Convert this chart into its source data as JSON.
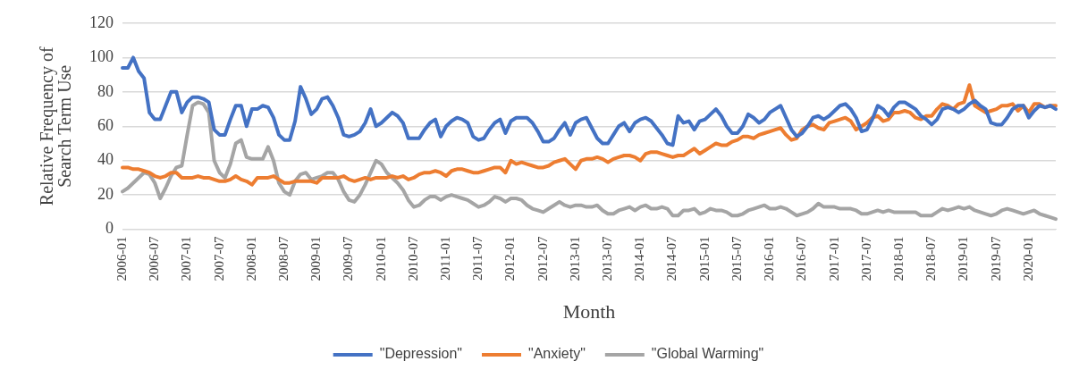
{
  "chart_data": {
    "type": "line",
    "xlabel": "Month",
    "ylabel": "Relative Frequency of Search Term Use",
    "ylim": [
      0,
      120
    ],
    "yticks": [
      0,
      20,
      40,
      60,
      80,
      100,
      120
    ],
    "grid": "y",
    "legend": "bottom",
    "marker": "none",
    "line_style": "solid",
    "categories": [
      "2006-01",
      null,
      null,
      null,
      null,
      null,
      "2006-07",
      null,
      null,
      null,
      null,
      null,
      "2007-01",
      null,
      null,
      null,
      null,
      null,
      "2007-07",
      null,
      null,
      null,
      null,
      null,
      "2008-01",
      null,
      null,
      null,
      null,
      null,
      "2008-07",
      null,
      null,
      null,
      null,
      null,
      "2009-01",
      null,
      null,
      null,
      null,
      null,
      "2009-07",
      null,
      null,
      null,
      null,
      null,
      "2010-01",
      null,
      null,
      null,
      null,
      null,
      "2010-07",
      null,
      null,
      null,
      null,
      null,
      "2011-01",
      null,
      null,
      null,
      null,
      null,
      "2011-07",
      null,
      null,
      null,
      null,
      null,
      "2012-01",
      null,
      null,
      null,
      null,
      null,
      "2012-07",
      null,
      null,
      null,
      null,
      null,
      "2013-01",
      null,
      null,
      null,
      null,
      null,
      "2013-07",
      null,
      null,
      null,
      null,
      null,
      "2014-01",
      null,
      null,
      null,
      null,
      null,
      "2014-07",
      null,
      null,
      null,
      null,
      null,
      "2015-01",
      null,
      null,
      null,
      null,
      null,
      "2015-07",
      null,
      null,
      null,
      null,
      null,
      "2016-01",
      null,
      null,
      null,
      null,
      null,
      "2016-07",
      null,
      null,
      null,
      null,
      null,
      "2017-01",
      null,
      null,
      null,
      null,
      null,
      "2017-07",
      null,
      null,
      null,
      null,
      null,
      "2018-01",
      null,
      null,
      null,
      null,
      null,
      "2018-07",
      null,
      null,
      null,
      null,
      null,
      "2019-01",
      null,
      null,
      null,
      null,
      null,
      "2019-07",
      null,
      null,
      null,
      null,
      null,
      "2020-01",
      null,
      null,
      null,
      null,
      null
    ],
    "series": [
      {
        "name": "\"Depression\"",
        "color": "#4472c4",
        "values": [
          94,
          94,
          100,
          92,
          88,
          68,
          64,
          64,
          72,
          80,
          80,
          68,
          74,
          77,
          77,
          76,
          74,
          58,
          55,
          55,
          64,
          72,
          72,
          60,
          70,
          70,
          72,
          71,
          65,
          55,
          52,
          52,
          63,
          83,
          76,
          67,
          70,
          76,
          77,
          72,
          65,
          55,
          54,
          55,
          57,
          62,
          70,
          60,
          62,
          65,
          68,
          66,
          62,
          53,
          53,
          53,
          58,
          62,
          64,
          54,
          60,
          63,
          65,
          64,
          62,
          54,
          52,
          53,
          58,
          62,
          64,
          56,
          63,
          65,
          65,
          65,
          62,
          57,
          51,
          51,
          53,
          58,
          62,
          55,
          62,
          64,
          65,
          59,
          53,
          50,
          50,
          55,
          60,
          62,
          57,
          62,
          64,
          65,
          63,
          59,
          55,
          50,
          49,
          66,
          62,
          63,
          58,
          63,
          64,
          67,
          70,
          66,
          60,
          56,
          56,
          60,
          67,
          65,
          62,
          64,
          68,
          70,
          72,
          65,
          58,
          54,
          56,
          60,
          65,
          66,
          64,
          66,
          69,
          72,
          73,
          70,
          65,
          57,
          58,
          64,
          72,
          70,
          66,
          71,
          74,
          74,
          72,
          70,
          66,
          64,
          61,
          64,
          70,
          71,
          70,
          68,
          70,
          73,
          75,
          72,
          70,
          62,
          61,
          61,
          65,
          70,
          72,
          72,
          65,
          69,
          72,
          71,
          72,
          70
        ]
      },
      {
        "name": "\"Anxiety\"",
        "color": "#ed7d31",
        "values": [
          36,
          36,
          35,
          35,
          34,
          33,
          31,
          30,
          31,
          33,
          33,
          30,
          30,
          30,
          31,
          30,
          30,
          29,
          28,
          28,
          29,
          31,
          29,
          28,
          26,
          30,
          30,
          30,
          31,
          29,
          27,
          27,
          28,
          28,
          28,
          28,
          27,
          30,
          30,
          30,
          30,
          31,
          29,
          28,
          29,
          30,
          29,
          30,
          30,
          30,
          31,
          30,
          31,
          29,
          30,
          32,
          33,
          33,
          34,
          33,
          31,
          34,
          35,
          35,
          34,
          33,
          33,
          34,
          35,
          36,
          36,
          33,
          40,
          38,
          39,
          38,
          37,
          36,
          36,
          37,
          39,
          40,
          41,
          38,
          35,
          40,
          41,
          41,
          42,
          41,
          39,
          41,
          42,
          43,
          43,
          42,
          40,
          44,
          45,
          45,
          44,
          43,
          42,
          43,
          43,
          45,
          47,
          44,
          46,
          48,
          50,
          49,
          49,
          51,
          52,
          54,
          54,
          53,
          55,
          56,
          57,
          58,
          59,
          55,
          52,
          53,
          58,
          60,
          61,
          59,
          58,
          62,
          63,
          64,
          65,
          63,
          58,
          60,
          62,
          65,
          66,
          63,
          64,
          68,
          68,
          69,
          68,
          65,
          64,
          66,
          66,
          70,
          73,
          72,
          70,
          73,
          74,
          84,
          72,
          70,
          68,
          69,
          70,
          72,
          72,
          73,
          69,
          72,
          68,
          73,
          73,
          71,
          72,
          72
        ]
      },
      {
        "name": "\"Global Warming\"",
        "color": "#a5a5a5",
        "values": [
          22,
          24,
          27,
          30,
          33,
          32,
          27,
          18,
          24,
          31,
          36,
          37,
          55,
          72,
          74,
          73,
          68,
          40,
          33,
          30,
          38,
          50,
          52,
          42,
          41,
          41,
          41,
          48,
          40,
          27,
          22,
          20,
          28,
          32,
          33,
          29,
          30,
          31,
          33,
          33,
          29,
          22,
          17,
          16,
          20,
          26,
          33,
          40,
          38,
          33,
          30,
          27,
          23,
          17,
          13,
          14,
          17,
          19,
          19,
          17,
          19,
          20,
          19,
          18,
          17,
          15,
          13,
          14,
          16,
          19,
          18,
          16,
          18,
          18,
          17,
          14,
          12,
          11,
          10,
          12,
          14,
          16,
          14,
          13,
          14,
          14,
          13,
          13,
          14,
          11,
          9,
          9,
          11,
          12,
          13,
          11,
          13,
          14,
          12,
          12,
          13,
          12,
          8,
          8,
          11,
          11,
          12,
          9,
          10,
          12,
          11,
          11,
          10,
          8,
          8,
          9,
          11,
          12,
          13,
          14,
          12,
          12,
          13,
          12,
          10,
          8,
          9,
          10,
          12,
          15,
          13,
          13,
          13,
          12,
          12,
          12,
          11,
          9,
          9,
          10,
          11,
          10,
          11,
          10,
          10,
          10,
          10,
          10,
          8,
          8,
          8,
          10,
          12,
          11,
          12,
          13,
          12,
          13,
          11,
          10,
          9,
          8,
          9,
          11,
          12,
          11,
          10,
          9,
          10,
          11,
          9,
          8,
          7,
          6
        ]
      }
    ]
  }
}
